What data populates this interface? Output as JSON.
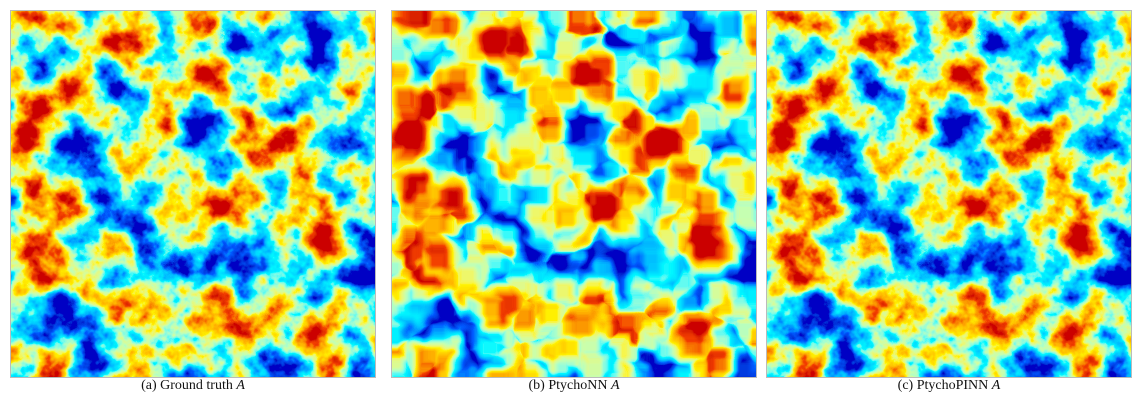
{
  "figure": {
    "panels": [
      {
        "caption": "(a) Ground truth",
        "symbol": "A"
      },
      {
        "caption": "(b) PtychoNN",
        "symbol": "A"
      },
      {
        "caption": "(c) PtychoPINN",
        "symbol": "A"
      }
    ]
  }
}
